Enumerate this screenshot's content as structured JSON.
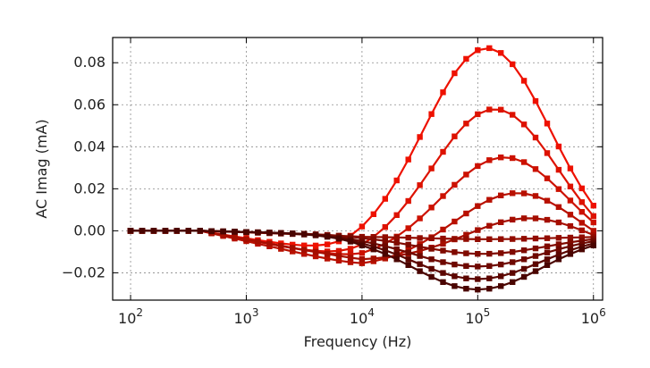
{
  "chart_data": {
    "type": "line",
    "title": "",
    "xlabel": "Frequency (Hz)",
    "ylabel": "AC Imag (mA)",
    "x_scale": "log",
    "xlim": [
      70,
      1200000
    ],
    "ylim": [
      -0.033,
      0.092
    ],
    "grid": true,
    "legend": "none",
    "x_ticks": [
      {
        "value": 100,
        "base": "10",
        "exp": "2"
      },
      {
        "value": 1000,
        "base": "10",
        "exp": "3"
      },
      {
        "value": 10000,
        "base": "10",
        "exp": "4"
      },
      {
        "value": 100000,
        "base": "10",
        "exp": "5"
      },
      {
        "value": 1000000,
        "base": "10",
        "exp": "6"
      }
    ],
    "y_ticks": [
      {
        "value": -0.02,
        "label": "−0.02"
      },
      {
        "value": 0.0,
        "label": "0.00"
      },
      {
        "value": 0.02,
        "label": "0.02"
      },
      {
        "value": 0.04,
        "label": "0.04"
      },
      {
        "value": 0.06,
        "label": "0.06"
      },
      {
        "value": 0.08,
        "label": "0.08"
      }
    ],
    "series": [
      {
        "color": "#ee1100",
        "peak_x": 120000,
        "peak_y": 0.087,
        "end_y": 0.012
      },
      {
        "color": "#dd1200",
        "peak_x": 140000,
        "peak_y": 0.058,
        "end_y": 0.007
      },
      {
        "color": "#cc1100",
        "peak_x": 170000,
        "peak_y": 0.035,
        "end_y": 0.004
      },
      {
        "color": "#b81000",
        "peak_x": 220000,
        "peak_y": 0.018,
        "end_y": 0.0
      },
      {
        "color": "#a50e00",
        "peak_x": 280000,
        "peak_y": 0.006,
        "end_y": -0.002
      },
      {
        "color": "#920c00",
        "peak_x": 120000,
        "peak_y": -0.004,
        "end_y": -0.003
      },
      {
        "color": "#800a00",
        "peak_x": 110000,
        "peak_y": -0.011,
        "end_y": -0.004
      },
      {
        "color": "#6e0800",
        "peak_x": 100000,
        "peak_y": -0.017,
        "end_y": -0.005
      },
      {
        "color": "#5c0600",
        "peak_x": 100000,
        "peak_y": -0.023,
        "end_y": -0.006
      },
      {
        "color": "#4a0400",
        "peak_x": 100000,
        "peak_y": -0.028,
        "end_y": -0.007
      }
    ]
  }
}
